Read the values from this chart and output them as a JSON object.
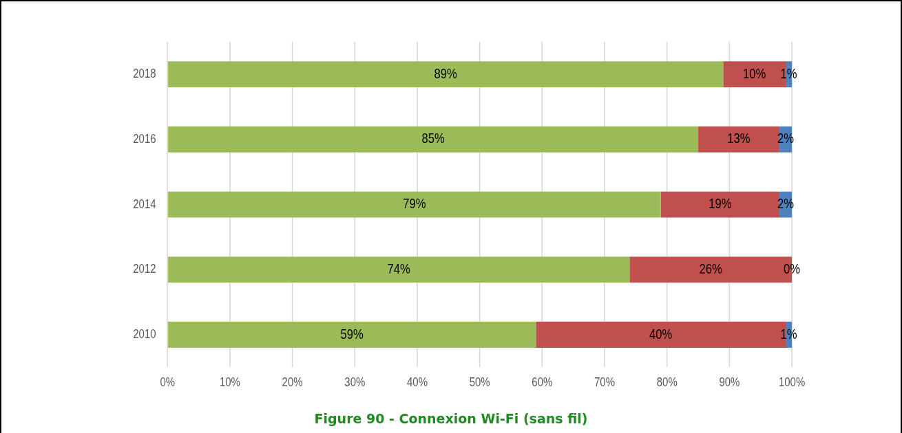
{
  "chart_data": {
    "type": "bar",
    "orientation": "horizontal",
    "stacked": true,
    "categories": [
      "2018",
      "2016",
      "2014",
      "2012",
      "2010"
    ],
    "series": [
      {
        "color": "#9bbb59",
        "values": [
          89,
          85,
          79,
          74,
          59
        ],
        "value_labels": [
          "89%",
          "85%",
          "79%",
          "74%",
          "59%"
        ]
      },
      {
        "color": "#c0504d",
        "values": [
          10,
          13,
          19,
          26,
          40
        ],
        "value_labels": [
          "10%",
          "13%",
          "19%",
          "26%",
          "40%"
        ]
      },
      {
        "color": "#4f81bd",
        "values": [
          1,
          2,
          2,
          0,
          1
        ],
        "value_labels": [
          "1%",
          "2%",
          "2%",
          "0%",
          "1%"
        ]
      }
    ],
    "xlim": [
      0,
      100
    ],
    "xticks": [
      {
        "value": 0,
        "label": "0%"
      },
      {
        "value": 10,
        "label": "10%"
      },
      {
        "value": 20,
        "label": "20%"
      },
      {
        "value": 30,
        "label": "30%"
      },
      {
        "value": 40,
        "label": "40%"
      },
      {
        "value": 50,
        "label": "50%"
      },
      {
        "value": 60,
        "label": "60%"
      },
      {
        "value": 70,
        "label": "70%"
      },
      {
        "value": 80,
        "label": "80%"
      },
      {
        "value": 90,
        "label": "90%"
      },
      {
        "value": 100,
        "label": "100%"
      }
    ],
    "grid": "x",
    "legend": false,
    "annotations": [
      "Figure 90 - Connexion Wi-Fi (sans fil)"
    ]
  }
}
